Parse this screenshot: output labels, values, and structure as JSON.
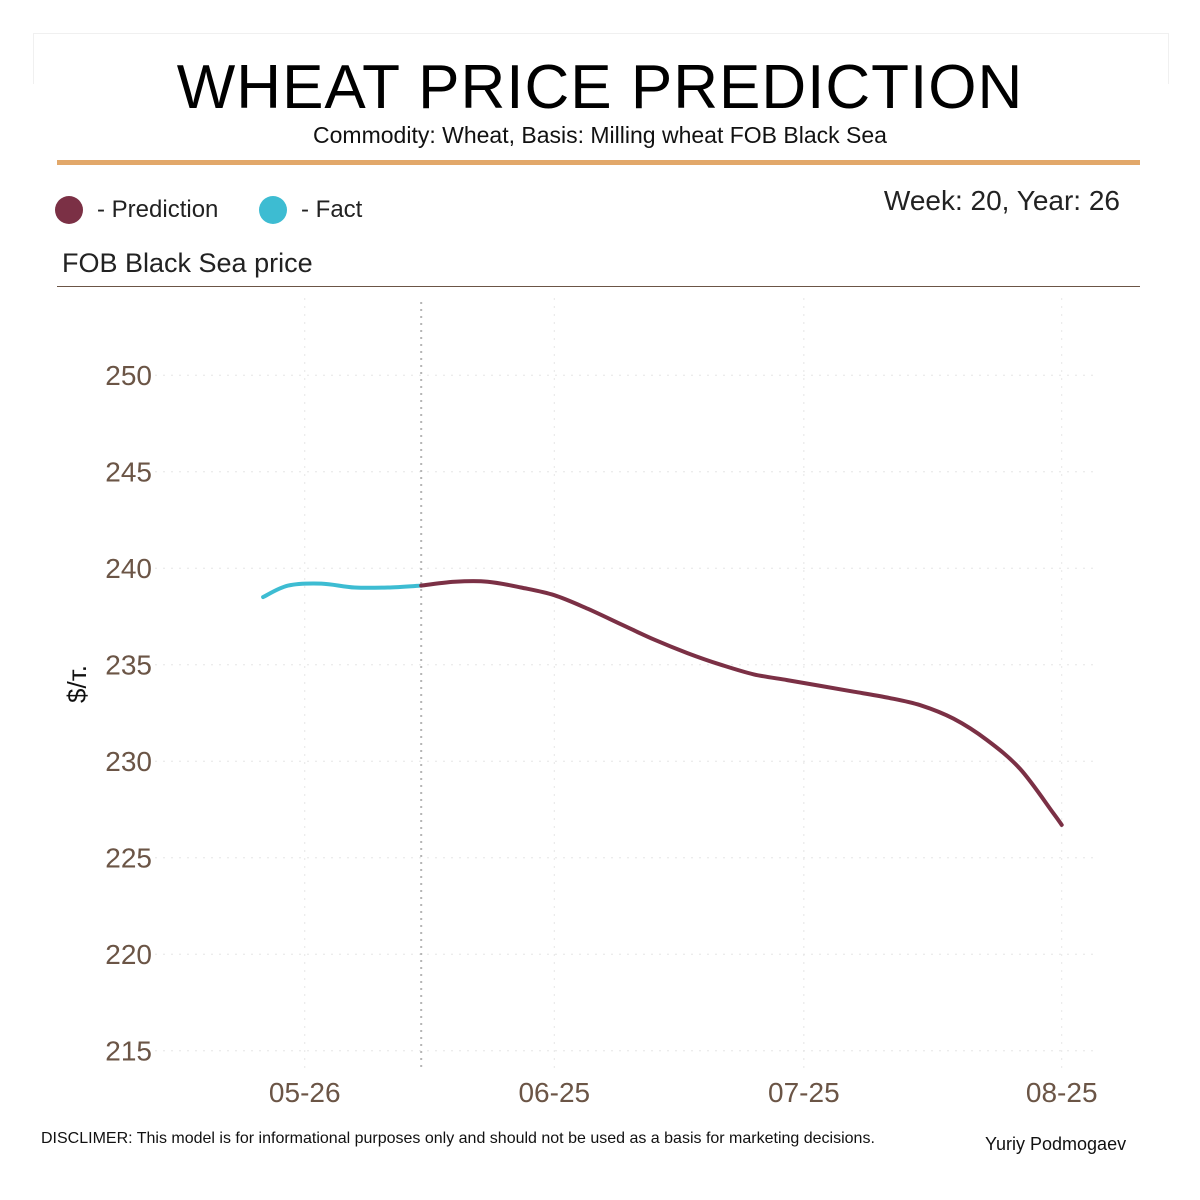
{
  "header": {
    "title": "WHEAT PRICE PREDICTION",
    "subtitle": "Commodity: Wheat, Basis: Milling wheat FOB Black Sea",
    "week_label": "Week: 20, Year: 26"
  },
  "legend": {
    "prediction_label": "- Prediction",
    "fact_label": "- Fact"
  },
  "panel_title": "FOB Black Sea price",
  "footer": {
    "disclaimer": "DISCLIMER:  This model is for informational purposes only and should not be used as a basis for marketing decisions.",
    "author": "Yuriy Podmogaev"
  },
  "colors": {
    "prediction": "#7b3045",
    "fact": "#3dbcd2",
    "accent": "#e2a86a",
    "tick_text": "#6b5546"
  },
  "chart_data": {
    "type": "line",
    "title": "FOB Black Sea price",
    "xlabel": "",
    "ylabel": "$/т.",
    "ylim": [
      214,
      254
    ],
    "xlim": [
      "2026-05-08",
      "2026-08-29"
    ],
    "y_ticks": [
      215,
      220,
      225,
      230,
      235,
      240,
      245,
      250
    ],
    "x_ticks": [
      {
        "date": "2026-05-26",
        "label": "05-26"
      },
      {
        "date": "2026-06-25",
        "label": "06-25"
      },
      {
        "date": "2026-07-25",
        "label": "07-25"
      },
      {
        "date": "2026-08-25",
        "label": "08-25"
      }
    ],
    "forecast_start": "2026-05-14",
    "grid": true,
    "legend_position": "top-left",
    "series": [
      {
        "name": "Fact",
        "color": "#3dbcd2",
        "points": [
          {
            "x": "2026-05-21",
            "y": 238.5
          },
          {
            "x": "2026-05-24",
            "y": 239.1
          },
          {
            "x": "2026-05-28",
            "y": 239.2
          },
          {
            "x": "2026-06-01",
            "y": 239.0
          },
          {
            "x": "2026-06-05",
            "y": 239.0
          },
          {
            "x": "2026-06-09",
            "y": 239.1
          }
        ]
      },
      {
        "name": "Prediction",
        "color": "#7b3045",
        "points": [
          {
            "x": "2026-06-09",
            "y": 239.1
          },
          {
            "x": "2026-06-13",
            "y": 239.3
          },
          {
            "x": "2026-06-17",
            "y": 239.3
          },
          {
            "x": "2026-06-21",
            "y": 239.0
          },
          {
            "x": "2026-06-25",
            "y": 238.6
          },
          {
            "x": "2026-06-29",
            "y": 237.9
          },
          {
            "x": "2026-07-03",
            "y": 237.1
          },
          {
            "x": "2026-07-07",
            "y": 236.3
          },
          {
            "x": "2026-07-11",
            "y": 235.6
          },
          {
            "x": "2026-07-15",
            "y": 235.0
          },
          {
            "x": "2026-07-19",
            "y": 234.5
          },
          {
            "x": "2026-07-23",
            "y": 234.2
          },
          {
            "x": "2026-07-27",
            "y": 233.9
          },
          {
            "x": "2026-07-31",
            "y": 233.6
          },
          {
            "x": "2026-08-04",
            "y": 233.3
          },
          {
            "x": "2026-08-08",
            "y": 232.9
          },
          {
            "x": "2026-08-12",
            "y": 232.2
          },
          {
            "x": "2026-08-16",
            "y": 231.1
          },
          {
            "x": "2026-08-20",
            "y": 229.6
          },
          {
            "x": "2026-08-24",
            "y": 227.3
          },
          {
            "x": "2026-08-25",
            "y": 226.7
          }
        ]
      }
    ]
  }
}
